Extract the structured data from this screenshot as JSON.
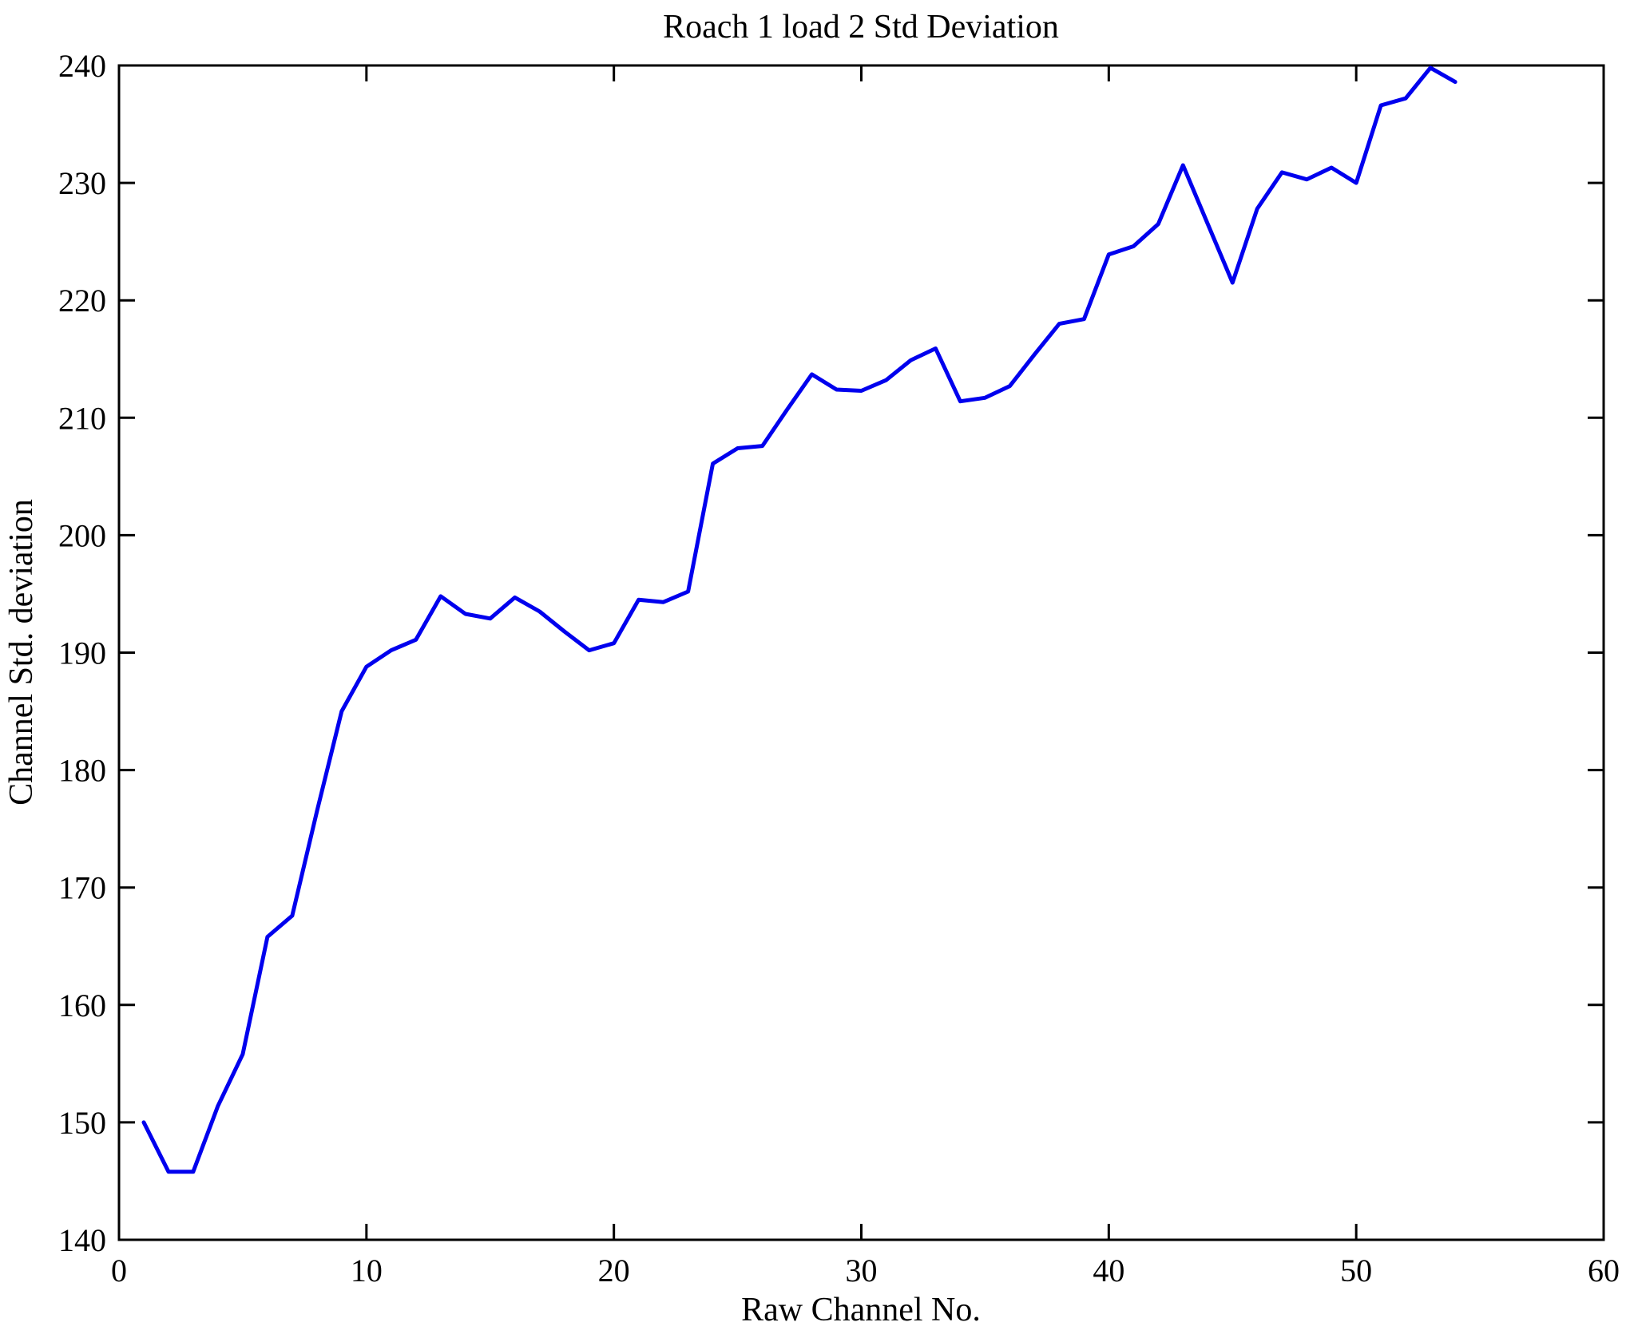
{
  "figure": {
    "background_color": "#ffffff",
    "axis_color": "#000000",
    "line_color": "#0000EE"
  },
  "chart_data": {
    "type": "line",
    "title": "Roach 1 load 2 Std Deviation",
    "xlabel": "Raw Channel No.",
    "ylabel": "Channel Std. deviation",
    "xlim": [
      0,
      60
    ],
    "ylim": [
      140,
      240
    ],
    "xticks": [
      0,
      10,
      20,
      30,
      40,
      50,
      60
    ],
    "yticks": [
      140,
      150,
      160,
      170,
      180,
      190,
      200,
      210,
      220,
      230,
      240
    ],
    "grid": false,
    "legend": null,
    "series": [
      {
        "name": "channel-std-deviation",
        "color": "#0000EE",
        "x": [
          1,
          2,
          3,
          4,
          5,
          6,
          7,
          8,
          9,
          10,
          11,
          12,
          13,
          14,
          15,
          16,
          17,
          18,
          19,
          20,
          21,
          22,
          23,
          24,
          25,
          26,
          27,
          28,
          29,
          30,
          31,
          32,
          33,
          34,
          35,
          36,
          37,
          38,
          39,
          40,
          41,
          42,
          43,
          44,
          45,
          46,
          47,
          48,
          49,
          50,
          51,
          52,
          53,
          54
        ],
        "values": [
          150.0,
          145.8,
          145.8,
          151.4,
          155.8,
          165.8,
          167.6,
          176.5,
          185.0,
          188.8,
          190.2,
          191.1,
          194.8,
          193.3,
          192.9,
          194.7,
          193.5,
          191.8,
          190.2,
          190.8,
          194.5,
          194.3,
          195.2,
          206.1,
          207.4,
          207.6,
          210.7,
          213.7,
          212.4,
          212.3,
          213.2,
          214.9,
          215.9,
          211.4,
          211.7,
          212.7,
          215.4,
          218.0,
          218.4,
          223.9,
          224.6,
          226.5,
          231.5,
          226.5,
          221.5,
          227.8,
          230.9,
          230.3,
          231.3,
          230.0,
          236.6,
          237.2,
          239.8,
          238.6
        ]
      }
    ]
  }
}
